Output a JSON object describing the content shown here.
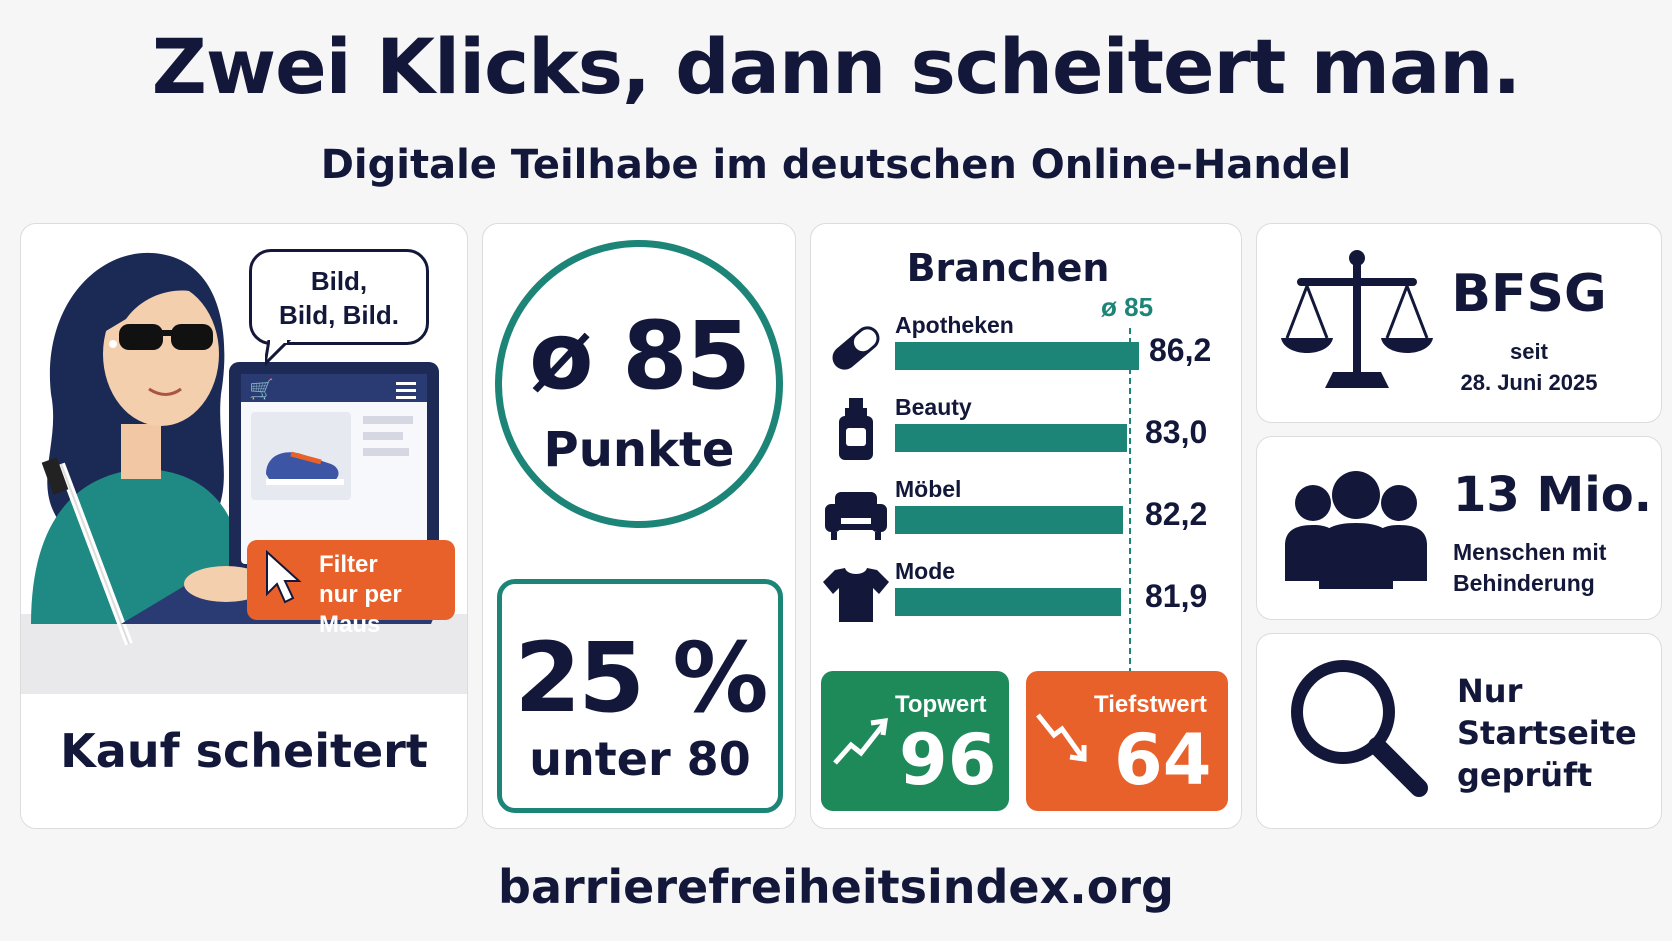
{
  "header": {
    "title": "Zwei Klicks, dann scheitert man.",
    "subtitle": "Digitale Teilhabe im deutschen Online-Handel"
  },
  "scenario": {
    "speech_line1": "Bild,",
    "speech_line2": "Bild, Bild.",
    "filter_line1": "Filter",
    "filter_line2": "nur per Maus",
    "caption": "Kauf scheitert"
  },
  "score": {
    "average_value": "ø 85",
    "average_unit": "Punkte",
    "share_value": "25 %",
    "share_label": "unter 80"
  },
  "branchen": {
    "title": "Branchen",
    "average_marker": "ø 85",
    "rows": [
      {
        "name": "Apotheken",
        "value": "86,2",
        "icon": "pill-icon"
      },
      {
        "name": "Beauty",
        "value": "83,0",
        "icon": "bottle-icon"
      },
      {
        "name": "Möbel",
        "value": "82,2",
        "icon": "sofa-icon"
      },
      {
        "name": "Mode",
        "value": "81,9",
        "icon": "tshirt-icon"
      }
    ],
    "top_label": "Topwert",
    "top_value": "96",
    "low_label": "Tiefstwert",
    "low_value": "64"
  },
  "facts": {
    "law_name": "BFSG",
    "law_since": "seit",
    "law_date": "28. Juni 2025",
    "people_value": "13 Mio.",
    "people_line1": "Menschen mit",
    "people_line2": "Behinderung",
    "scope_line1": "Nur",
    "scope_line2": "Startseite",
    "scope_line3": "geprüft"
  },
  "footer": {
    "url": "barrierefreiheitsindex.org"
  },
  "colors": {
    "navy": "#13183a",
    "teal": "#1c8577",
    "green": "#1e8a5a",
    "orange": "#e8612a"
  }
}
